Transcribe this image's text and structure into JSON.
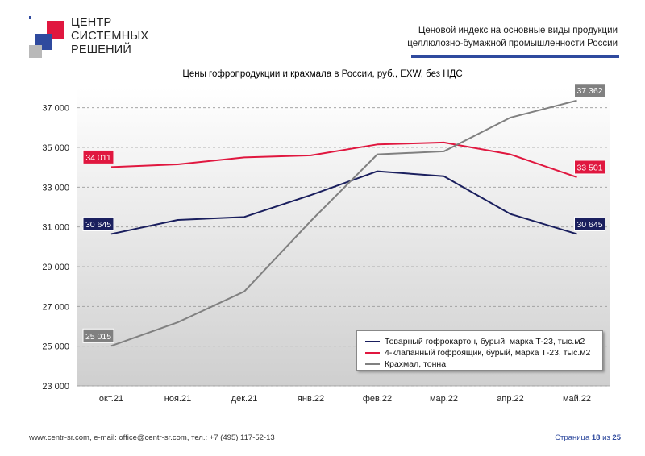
{
  "logo": {
    "lines": [
      "ЦЕНТР",
      "СИСТЕМНЫХ",
      "РЕШЕНИЙ"
    ]
  },
  "header": {
    "title_line1": "Ценовой индекс на основные виды продукции",
    "title_line2": "целлюлозно-бумажной промышленности России"
  },
  "footer": {
    "contacts": "www.centr-sr.com, e-mail: office@centr-sr.com, тел.: +7 (495) 117-52-13",
    "page_prefix": "Страница",
    "page_current": "18",
    "page_sep": "из",
    "page_total": "25"
  },
  "colors": {
    "navy": "#1a1f5e",
    "red": "#e0173f",
    "gray": "#808080",
    "accent_blue": "#2f4a9e"
  },
  "chart_data": {
    "type": "line",
    "title": "Цены гофропродукции и крахмала в России, руб., EXW, без НДС",
    "categories": [
      "окт.21",
      "ноя.21",
      "дек.21",
      "янв.22",
      "фев.22",
      "мар.22",
      "апр.22",
      "май.22"
    ],
    "ylim": [
      23000,
      38000
    ],
    "yticks": [
      23000,
      25000,
      27000,
      29000,
      31000,
      33000,
      35000,
      37000
    ],
    "ytick_labels": [
      "23 000",
      "25 000",
      "27 000",
      "29 000",
      "31 000",
      "33 000",
      "35 000",
      "37 000"
    ],
    "grid": true,
    "legend_position": "bottom-right",
    "series": [
      {
        "name": "Товарный гофрокартон, бурый, марка Т-23, тыс.м2",
        "color": "#1a1f5e",
        "values": [
          30645,
          31350,
          31500,
          32600,
          33800,
          33550,
          31650,
          30645
        ],
        "labels": {
          "start": "30 645",
          "end": "30 645"
        }
      },
      {
        "name": "4-клапанный гофроящик, бурый, марка Т-23, тыс.м2",
        "color": "#e0173f",
        "values": [
          34011,
          34150,
          34500,
          34600,
          35150,
          35250,
          34650,
          33501
        ],
        "labels": {
          "start": "34 011",
          "end": "33 501"
        }
      },
      {
        "name": "Крахмал, тонна",
        "color": "#808080",
        "values": [
          25015,
          26200,
          27750,
          31300,
          34650,
          34800,
          36500,
          37362
        ],
        "labels": {
          "start": "25 015",
          "end": "37 362"
        }
      }
    ]
  }
}
